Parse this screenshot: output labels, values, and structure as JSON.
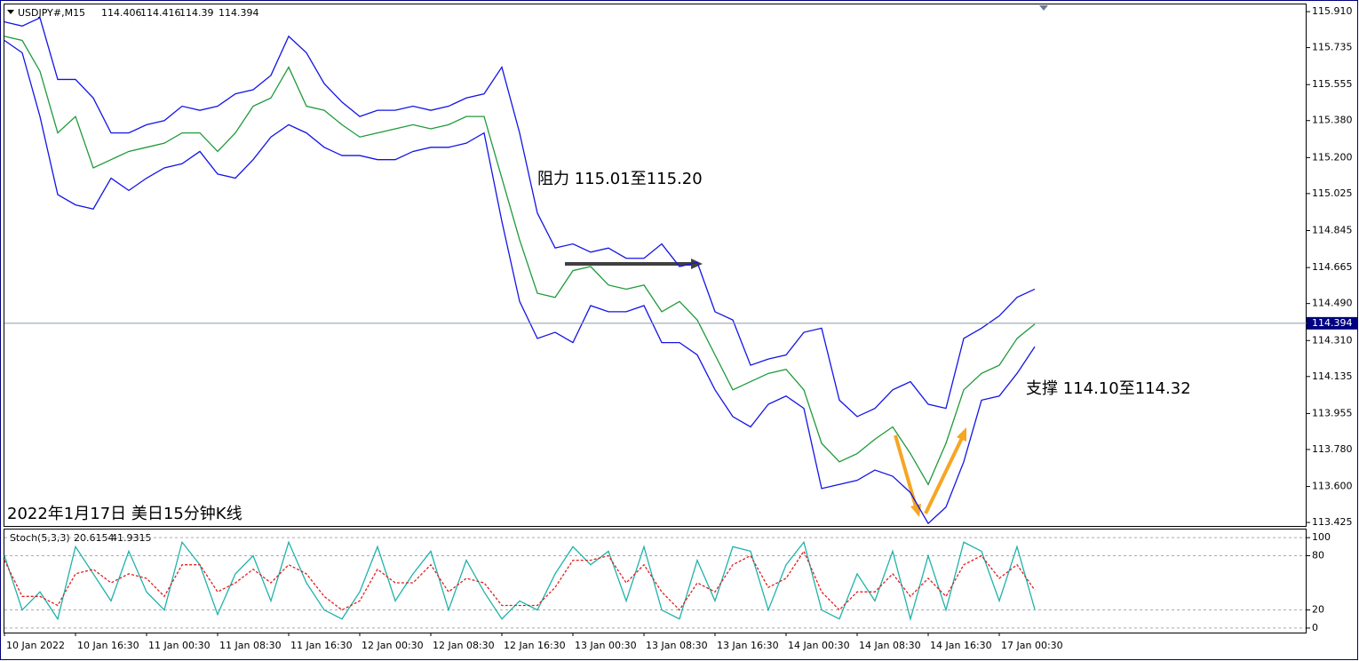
{
  "chart_data": [
    {
      "type": "line",
      "title": "USDJPY#,M15",
      "ohlc": [
        114.406,
        114.416,
        114.39,
        114.394
      ],
      "annotations": [
        "阻力 115.01至115.20",
        "支撑 114.10至114.32",
        "2022年1月17日 美日15分钟K线"
      ],
      "categories": [
        "10 Jan 2022",
        null,
        null,
        null,
        "10 Jan 16:30",
        null,
        null,
        null,
        "11 Jan 00:30",
        null,
        null,
        null,
        "11 Jan 08:30",
        null,
        null,
        null,
        "11 Jan 16:30",
        null,
        null,
        null,
        "12 Jan 00:30",
        null,
        null,
        null,
        "12 Jan 08:30",
        null,
        null,
        null,
        "12 Jan 16:30",
        null,
        null,
        null,
        "13 Jan 00:30",
        null,
        null,
        null,
        "13 Jan 08:30",
        null,
        null,
        null,
        "13 Jan 16:30",
        null,
        null,
        null,
        "14 Jan 00:30",
        null,
        null,
        null,
        "14 Jan 08:30",
        null,
        null,
        null,
        "14 Jan 16:30",
        null,
        null,
        null,
        "17 Jan 00:30",
        null,
        null
      ],
      "series": [
        {
          "color": "#1f9a3a",
          "values": [
            115.79,
            115.77,
            115.62,
            115.32,
            115.4,
            115.15,
            115.19,
            115.23,
            115.25,
            115.27,
            115.32,
            115.32,
            115.23,
            115.32,
            115.45,
            115.49,
            115.64,
            115.45,
            115.43,
            115.36,
            115.3,
            115.32,
            115.34,
            115.36,
            115.34,
            115.36,
            115.4,
            115.4,
            115.1,
            114.8,
            114.54,
            114.52,
            114.65,
            114.67,
            114.58,
            114.56,
            114.58,
            114.45,
            114.5,
            114.41,
            114.24,
            114.07,
            114.11,
            114.15,
            114.17,
            114.07,
            113.81,
            113.72,
            113.76,
            113.83,
            113.89,
            113.76,
            113.61,
            113.81,
            114.07,
            114.15,
            114.19,
            114.32,
            114.39
          ]
        },
        {
          "color": "#1414e6",
          "values": [
            115.86,
            115.84,
            115.88,
            115.58,
            115.58,
            115.49,
            115.32,
            115.32,
            115.36,
            115.38,
            115.45,
            115.43,
            115.45,
            115.51,
            115.53,
            115.6,
            115.79,
            115.71,
            115.56,
            115.47,
            115.4,
            115.43,
            115.43,
            115.45,
            115.43,
            115.45,
            115.49,
            115.51,
            115.64,
            115.32,
            114.93,
            114.76,
            114.78,
            114.74,
            114.76,
            114.71,
            114.71,
            114.78,
            114.67,
            114.69,
            114.45,
            114.41,
            114.19,
            114.22,
            114.24,
            114.35,
            114.37,
            114.02,
            113.94,
            113.98,
            114.07,
            114.11,
            114.0,
            113.98,
            114.32,
            114.37,
            114.43,
            114.52,
            114.56
          ]
        },
        {
          "color": "#1414e6",
          "values": [
            115.77,
            115.71,
            115.4,
            115.02,
            114.97,
            114.95,
            115.1,
            115.04,
            115.1,
            115.15,
            115.17,
            115.23,
            115.12,
            115.1,
            115.19,
            115.3,
            115.36,
            115.32,
            115.25,
            115.21,
            115.21,
            115.19,
            115.19,
            115.23,
            115.25,
            115.25,
            115.27,
            115.32,
            114.89,
            114.5,
            114.32,
            114.35,
            114.3,
            114.48,
            114.45,
            114.45,
            114.48,
            114.3,
            114.3,
            114.24,
            114.07,
            113.94,
            113.89,
            114.0,
            114.04,
            113.98,
            113.59,
            113.61,
            113.63,
            113.68,
            113.65,
            113.57,
            113.42,
            113.5,
            113.72,
            114.02,
            114.04,
            114.15,
            114.28
          ]
        }
      ],
      "ylim": [
        113.408,
        115.945
      ],
      "yticks": [
        {
          "value": 115.91,
          "label": "115.910"
        },
        115.735,
        115.555,
        {
          "value": 115.38,
          "label": "115.380"
        },
        {
          "value": 115.2,
          "label": "115.200"
        },
        115.025,
        114.845,
        114.665,
        {
          "value": 114.49,
          "label": "114.490"
        },
        {
          "value": 114.31,
          "label": "114.310"
        },
        114.135,
        113.955,
        {
          "value": 113.78,
          "label": "113.780"
        },
        {
          "value": 113.6,
          "label": "113.600"
        },
        113.425
      ],
      "grid": false
    },
    {
      "type": "line",
      "title": "Stoch(5,3,3)",
      "series": [
        {
          "color": "#20b2aa",
          "values": [
            80,
            20,
            40,
            10,
            90,
            60,
            30,
            85,
            40,
            20,
            95,
            70,
            15,
            60,
            80,
            30,
            95,
            50,
            20,
            10,
            40,
            90,
            30,
            60,
            85,
            20,
            75,
            40,
            10,
            30,
            20,
            60,
            90,
            70,
            85,
            30,
            90,
            20,
            10,
            75,
            30,
            90,
            85,
            20,
            70,
            95,
            20,
            10,
            60,
            30,
            85,
            10,
            80,
            20,
            95,
            85,
            30,
            90,
            20.6154
          ]
        },
        {
          "color": "#e02020",
          "dashed": true,
          "values": [
            75,
            35,
            35,
            25,
            60,
            65,
            50,
            60,
            55,
            35,
            70,
            70,
            40,
            50,
            65,
            50,
            70,
            60,
            35,
            20,
            30,
            65,
            50,
            50,
            70,
            40,
            55,
            50,
            25,
            25,
            25,
            45,
            75,
            75,
            80,
            50,
            70,
            40,
            20,
            50,
            40,
            70,
            80,
            45,
            55,
            85,
            40,
            20,
            40,
            40,
            60,
            35,
            55,
            35,
            70,
            80,
            55,
            70,
            41.9315
          ]
        }
      ],
      "ylim": [
        -5,
        109
      ],
      "yticks": [
        100,
        80,
        20,
        0
      ],
      "grid": true
    }
  ]
}
